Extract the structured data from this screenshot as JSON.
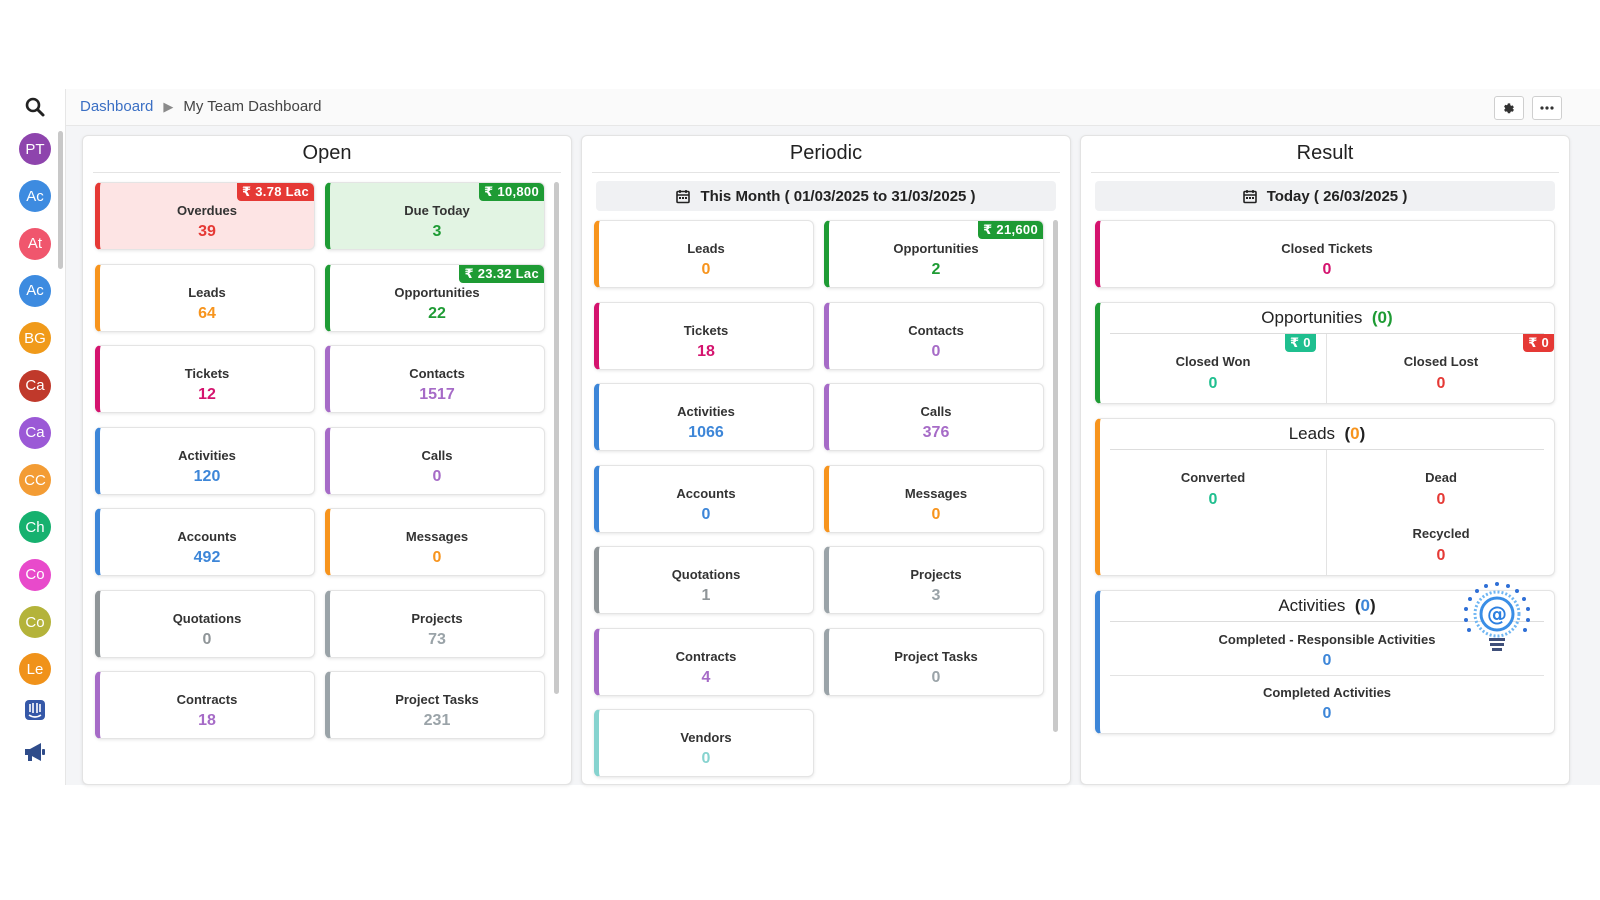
{
  "breadcrumb": {
    "root": "Dashboard",
    "current": "My Team Dashboard"
  },
  "sidebar": {
    "avatars": [
      {
        "initials": "PT",
        "color": "#8e44ad"
      },
      {
        "initials": "Ac",
        "color": "#3d8be0"
      },
      {
        "initials": "At",
        "color": "#f0566d"
      },
      {
        "initials": "Ac",
        "color": "#3d8be0"
      },
      {
        "initials": "BG",
        "color": "#f09a1a"
      },
      {
        "initials": "Ca",
        "color": "#c0392b"
      },
      {
        "initials": "Ca",
        "color": "#9b59d6"
      },
      {
        "initials": "CC",
        "color": "#f39c34"
      },
      {
        "initials": "Ch",
        "color": "#16b16f"
      },
      {
        "initials": "Co",
        "color": "#e84acb"
      },
      {
        "initials": "Co",
        "color": "#b4b33a"
      },
      {
        "initials": "Le",
        "color": "#f0921a"
      }
    ],
    "icons": [
      "search-icon",
      "intercom-icon",
      "megaphone-icon"
    ]
  },
  "toolbar": {
    "icons": [
      "gear-icon",
      "more-icon"
    ]
  },
  "open": {
    "title": "Open",
    "cards": [
      {
        "label": "Overdues",
        "value": "39",
        "color": "#e53935",
        "badge": "₹ 3.78 Lac",
        "badge_color": "red",
        "bg": "#fde4e4"
      },
      {
        "label": "Due Today",
        "value": "3",
        "color": "#1e9b34",
        "badge": "₹ 10,800",
        "badge_color": "green",
        "bg": "#e2f4e3"
      },
      {
        "label": "Leads",
        "value": "64",
        "color": "#f7941d"
      },
      {
        "label": "Opportunities",
        "value": "22",
        "color": "#1e9b34",
        "badge": "₹ 23.32 Lac",
        "badge_color": "green"
      },
      {
        "label": "Tickets",
        "value": "12",
        "color": "#d4136e"
      },
      {
        "label": "Contacts",
        "value": "1517",
        "color": "#a66bc7"
      },
      {
        "label": "Activities",
        "value": "120",
        "color": "#3d86d8"
      },
      {
        "label": "Calls",
        "value": "0",
        "color": "#a66bc7"
      },
      {
        "label": "Accounts",
        "value": "492",
        "color": "#3d86d8"
      },
      {
        "label": "Messages",
        "value": "0",
        "color": "#f7941d"
      },
      {
        "label": "Quotations",
        "value": "0",
        "color": "#8f9598"
      },
      {
        "label": "Projects",
        "value": "73",
        "color": "#9aa3a8"
      },
      {
        "label": "Contracts",
        "value": "18",
        "color": "#a66bc7"
      },
      {
        "label": "Project Tasks",
        "value": "231",
        "color": "#9aa3a8"
      }
    ]
  },
  "periodic": {
    "title": "Periodic",
    "date_range": "This Month ( 01/03/2025 to 31/03/2025 )",
    "cards": [
      {
        "label": "Leads",
        "value": "0",
        "color": "#f7941d"
      },
      {
        "label": "Opportunities",
        "value": "2",
        "color": "#1e9b34",
        "badge": "₹ 21,600",
        "badge_color": "green"
      },
      {
        "label": "Tickets",
        "value": "18",
        "color": "#d4136e"
      },
      {
        "label": "Contacts",
        "value": "0",
        "color": "#a66bc7"
      },
      {
        "label": "Activities",
        "value": "1066",
        "color": "#3d86d8"
      },
      {
        "label": "Calls",
        "value": "376",
        "color": "#a66bc7"
      },
      {
        "label": "Accounts",
        "value": "0",
        "color": "#3d86d8"
      },
      {
        "label": "Messages",
        "value": "0",
        "color": "#f7941d"
      },
      {
        "label": "Quotations",
        "value": "1",
        "color": "#8f9598"
      },
      {
        "label": "Projects",
        "value": "3",
        "color": "#9aa3a8"
      },
      {
        "label": "Contracts",
        "value": "4",
        "color": "#a66bc7"
      },
      {
        "label": "Project Tasks",
        "value": "0",
        "color": "#9aa3a8"
      },
      {
        "label": "Vendors",
        "value": "0",
        "color": "#86d3cf"
      }
    ]
  },
  "result": {
    "title": "Result",
    "date": "Today ( 26/03/2025 )",
    "closed_tickets": {
      "label": "Closed Tickets",
      "value": "0",
      "color": "#d4136e"
    },
    "opportunities": {
      "title": "Opportunities",
      "count": "0",
      "color": "#1e9b34",
      "won": {
        "label": "Closed Won",
        "value": "0",
        "badge": "₹ 0",
        "color": "#1fbf8f"
      },
      "lost": {
        "label": "Closed Lost",
        "value": "0",
        "badge": "₹ 0",
        "color": "#e53935"
      }
    },
    "leads": {
      "title": "Leads",
      "count": "0",
      "color": "#f7941d",
      "converted": {
        "label": "Converted",
        "value": "0",
        "color": "#1fbf8f"
      },
      "dead": {
        "label": "Dead",
        "value": "0",
        "color": "#e53935"
      },
      "recycled": {
        "label": "Recycled",
        "value": "0",
        "color": "#e53935"
      }
    },
    "activities": {
      "title": "Activities",
      "count": "0",
      "color": "#3d86d8",
      "responsible": {
        "label": "Completed - Responsible Activities",
        "value": "0"
      },
      "completed": {
        "label": "Completed Activities",
        "value": "0"
      }
    }
  }
}
